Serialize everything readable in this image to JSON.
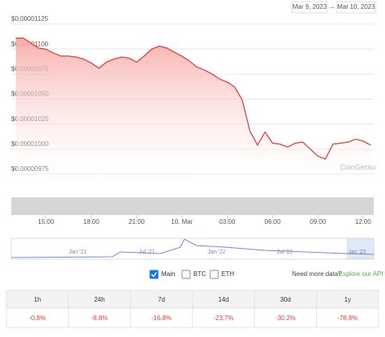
{
  "chart_data": {
    "type": "line",
    "x": [
      13.0,
      13.5,
      14.0,
      14.5,
      15.0,
      15.5,
      16.0,
      16.5,
      17.0,
      17.5,
      18.0,
      18.5,
      19.0,
      19.5,
      20.0,
      20.5,
      21.0,
      21.5,
      22.0,
      22.5,
      23.0,
      23.5,
      24.0,
      24.5,
      25.0,
      25.5,
      26.0,
      26.5,
      27.0,
      27.5,
      28.0,
      28.5,
      29.0,
      29.5,
      30.0,
      30.5,
      31.0,
      31.5,
      32.0,
      32.5,
      33.0,
      33.5,
      34.0,
      34.5,
      35.0,
      35.5,
      36.0,
      36.5
    ],
    "values": [
      1.111e-05,
      1.111e-05,
      1.106e-05,
      1.101e-05,
      1.1e-05,
      1.096e-05,
      1.093e-05,
      1.093e-05,
      1.092e-05,
      1.09e-05,
      1.086e-05,
      1.081e-05,
      1.087e-05,
      1.09e-05,
      1.092e-05,
      1.091e-05,
      1.087e-05,
      1.093e-05,
      1.1e-05,
      1.103e-05,
      1.101e-05,
      1.097e-05,
      1.093e-05,
      1.088e-05,
      1.082e-05,
      1.079e-05,
      1.075e-05,
      1.07e-05,
      1.067e-05,
      1.062e-05,
      1.049e-05,
      1.018e-05,
      1.004e-05,
      1.017e-05,
      1.006e-05,
      1.005e-05,
      1.002e-05,
      1.006e-05,
      1.007e-05,
      1e-05,
      9.93e-06,
      9.9e-06,
      1.005e-05,
      1.006e-05,
      1.007e-05,
      1.01e-05,
      1.008e-05,
      1.004e-05
    ],
    "color": "#e0403a",
    "xlim": [
      12.7,
      36.7
    ],
    "xticks": [
      {
        "value": 15,
        "label": "15:00"
      },
      {
        "value": 18,
        "label": "18:00"
      },
      {
        "value": 21,
        "label": "21:00"
      },
      {
        "value": 24,
        "label": "10. Mar"
      },
      {
        "value": 27,
        "label": "03:00"
      },
      {
        "value": 30,
        "label": "06:00"
      },
      {
        "value": 33,
        "label": "09:00"
      },
      {
        "value": 36,
        "label": "12:00"
      }
    ],
    "ylim": [
      9.75e-06,
      1.125e-05
    ],
    "yticks": [
      {
        "value": 9.75e-06,
        "label": "$0.00000975"
      },
      {
        "value": 1e-05,
        "label": "$0.00001000"
      },
      {
        "value": 1.025e-05,
        "label": "$0.00001025"
      },
      {
        "value": 1.05e-05,
        "label": "$0.00001050"
      },
      {
        "value": 1.075e-05,
        "label": "$0.00001075"
      },
      {
        "value": 1.1e-05,
        "label": "$0.00001100"
      },
      {
        "value": 1.125e-05,
        "label": "$0.00001125"
      }
    ],
    "grid": true,
    "watermark": "CoinGecko"
  },
  "date_range": {
    "from": "Mar 9, 2023",
    "arrow": "→",
    "to": "Mar 10, 2023"
  },
  "navigator_labels": [
    "Jan '21",
    "Jul '21",
    "Jan '22",
    "Jul '22",
    "Jan '23"
  ],
  "options": [
    "Main",
    "BTC",
    "ETH"
  ],
  "api": {
    "question": "Need more data?",
    "link": "Explore our API"
  },
  "table": {
    "headers": [
      "1h",
      "24h",
      "7d",
      "14d",
      "30d",
      "1y"
    ],
    "values": [
      "-0.8%",
      "-8.8%",
      "-16.8%",
      "-23.7%",
      "-30.2%",
      "-78.9%"
    ]
  }
}
